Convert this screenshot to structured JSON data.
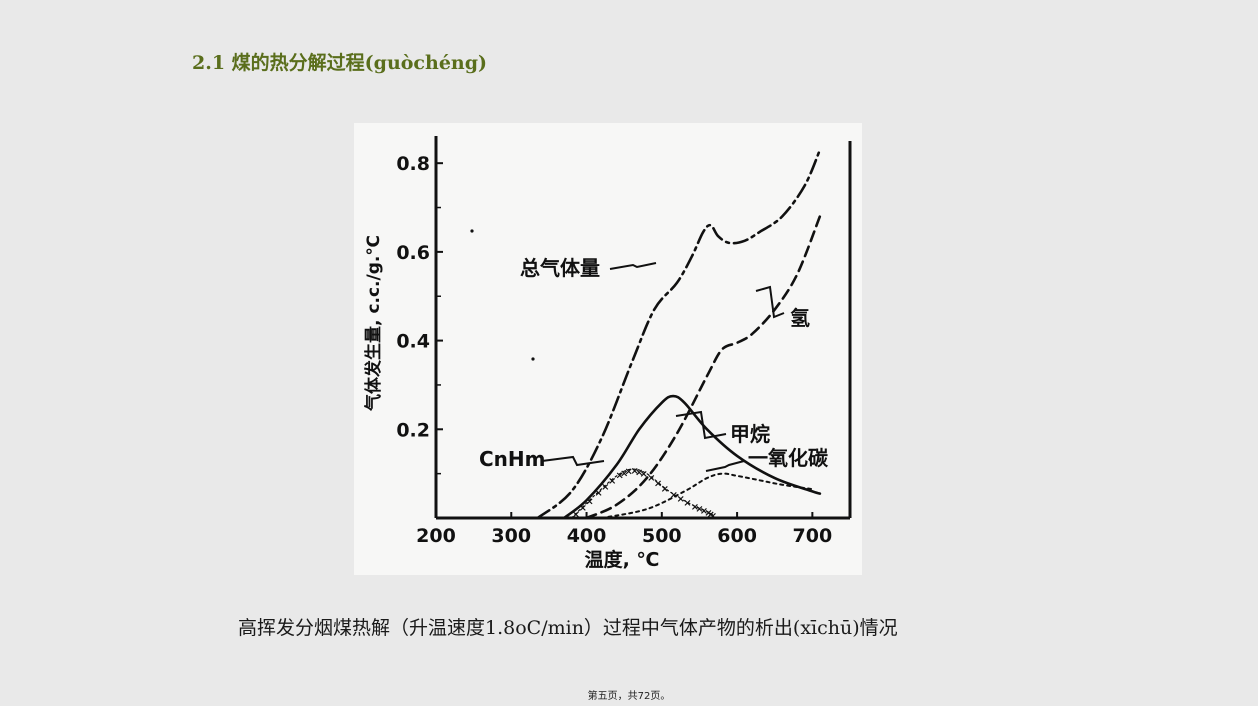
{
  "slide": {
    "title": "2.1  煤的热分解过程(guòchéng)",
    "caption": "高挥发分烟煤热解（升温速度1.8oC/min）过程中气体产物的析出(xīchū)情况",
    "page_number": "第五页，共72页。"
  },
  "chart_data": {
    "type": "line",
    "xlabel": "温度, ℃",
    "ylabel": "气体发生量, c.c./g.℃",
    "xlim": [
      200,
      750
    ],
    "ylim": [
      0,
      0.85
    ],
    "x_ticks": [
      "200",
      "300",
      "400",
      "500",
      "600",
      "700"
    ],
    "y_ticks": [
      "0.2",
      "0.4",
      "0.6",
      "0.8"
    ],
    "grid": false,
    "series": [
      {
        "name": "总气体量",
        "style": "dash-dot",
        "x": [
          335,
          380,
          420,
          460,
          490,
          520,
          540,
          555,
          565,
          575,
          590,
          610,
          630,
          660,
          690,
          710
        ],
        "y": [
          0,
          0.06,
          0.18,
          0.35,
          0.47,
          0.53,
          0.59,
          0.645,
          0.66,
          0.635,
          0.62,
          0.625,
          0.645,
          0.68,
          0.75,
          0.83
        ]
      },
      {
        "name": "氢",
        "style": "dashed",
        "x": [
          400,
          440,
          480,
          520,
          560,
          580,
          600,
          620,
          650,
          680,
          710
        ],
        "y": [
          0,
          0.03,
          0.09,
          0.19,
          0.32,
          0.38,
          0.395,
          0.415,
          0.47,
          0.55,
          0.68
        ]
      },
      {
        "name": "甲烷",
        "style": "solid",
        "x": [
          370,
          400,
          440,
          470,
          500,
          515,
          530,
          560,
          600,
          650,
          700,
          710
        ],
        "y": [
          0,
          0.04,
          0.12,
          0.2,
          0.26,
          0.275,
          0.26,
          0.2,
          0.14,
          0.09,
          0.06,
          0.055
        ]
      },
      {
        "name": "一氧化碳",
        "style": "dotted",
        "x": [
          420,
          480,
          530,
          560,
          580,
          600,
          630,
          660,
          700
        ],
        "y": [
          0,
          0.02,
          0.06,
          0.09,
          0.1,
          0.095,
          0.085,
          0.075,
          0.065
        ]
      },
      {
        "name": "CnHm",
        "style": "x-marks",
        "x": [
          380,
          410,
          440,
          460,
          480,
          510,
          540,
          560,
          570
        ],
        "y": [
          0,
          0.05,
          0.095,
          0.11,
          0.1,
          0.06,
          0.03,
          0.015,
          0.005
        ]
      }
    ]
  }
}
